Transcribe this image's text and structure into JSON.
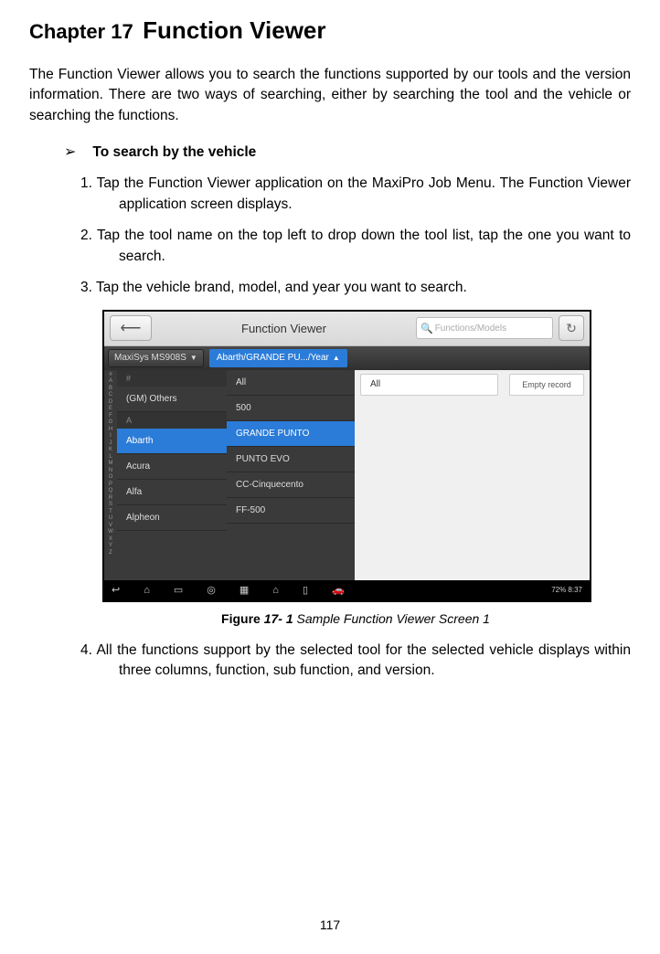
{
  "chapter": {
    "number": "Chapter 17",
    "title": "Function Viewer"
  },
  "intro": "The Function Viewer allows you to search the functions supported by our tools and the version information. There are two ways of searching, either by searching the tool and the vehicle or searching the functions.",
  "section": {
    "arrow": "➢",
    "label": "To search by the vehicle"
  },
  "steps": {
    "s1": "1. Tap the Function Viewer application on the MaxiPro Job Menu. The Function Viewer application screen displays.",
    "s2": "2. Tap the tool name on the top left to drop down the tool list, tap the one you want to search.",
    "s3": "3. Tap the vehicle brand, model, and year you want to search.",
    "s4": "4. All the functions support by the selected tool for the selected vehicle displays within three columns, function, sub function, and version."
  },
  "figure": {
    "label": "Figure ",
    "num": "17- 1",
    "desc": " Sample Function Viewer Screen 1"
  },
  "screenshot": {
    "header_title": "Function Viewer",
    "search_placeholder": "Functions/Models",
    "tool_dropdown": "MaxiSys MS908S",
    "breadcrumb": "Abarth/GRANDE PU.../Year",
    "alpha": "#ABCDEFGHIJKLMNOPQRSTUVWXYZ",
    "col1": {
      "letter1": "#",
      "r1": "(GM) Others",
      "letter2": "A",
      "r2": "Abarth",
      "r3": "Acura",
      "r4": "Alfa",
      "r5": "Alpheon"
    },
    "col2": {
      "r1": "All",
      "r2": "500",
      "r3": "GRANDE PUNTO",
      "r4": "PUNTO EVO",
      "r5": "CC-Cinquecento",
      "r6": "FF-500"
    },
    "col3": {
      "r1": "All"
    },
    "col4": {
      "r1": "Empty record"
    },
    "status": "72% 8:37"
  },
  "page_number": "117",
  "colors": {
    "ss_blue": "#2b7cd8",
    "ss_dark": "#3a3a3a",
    "ss_header": "#e0e0e0"
  }
}
